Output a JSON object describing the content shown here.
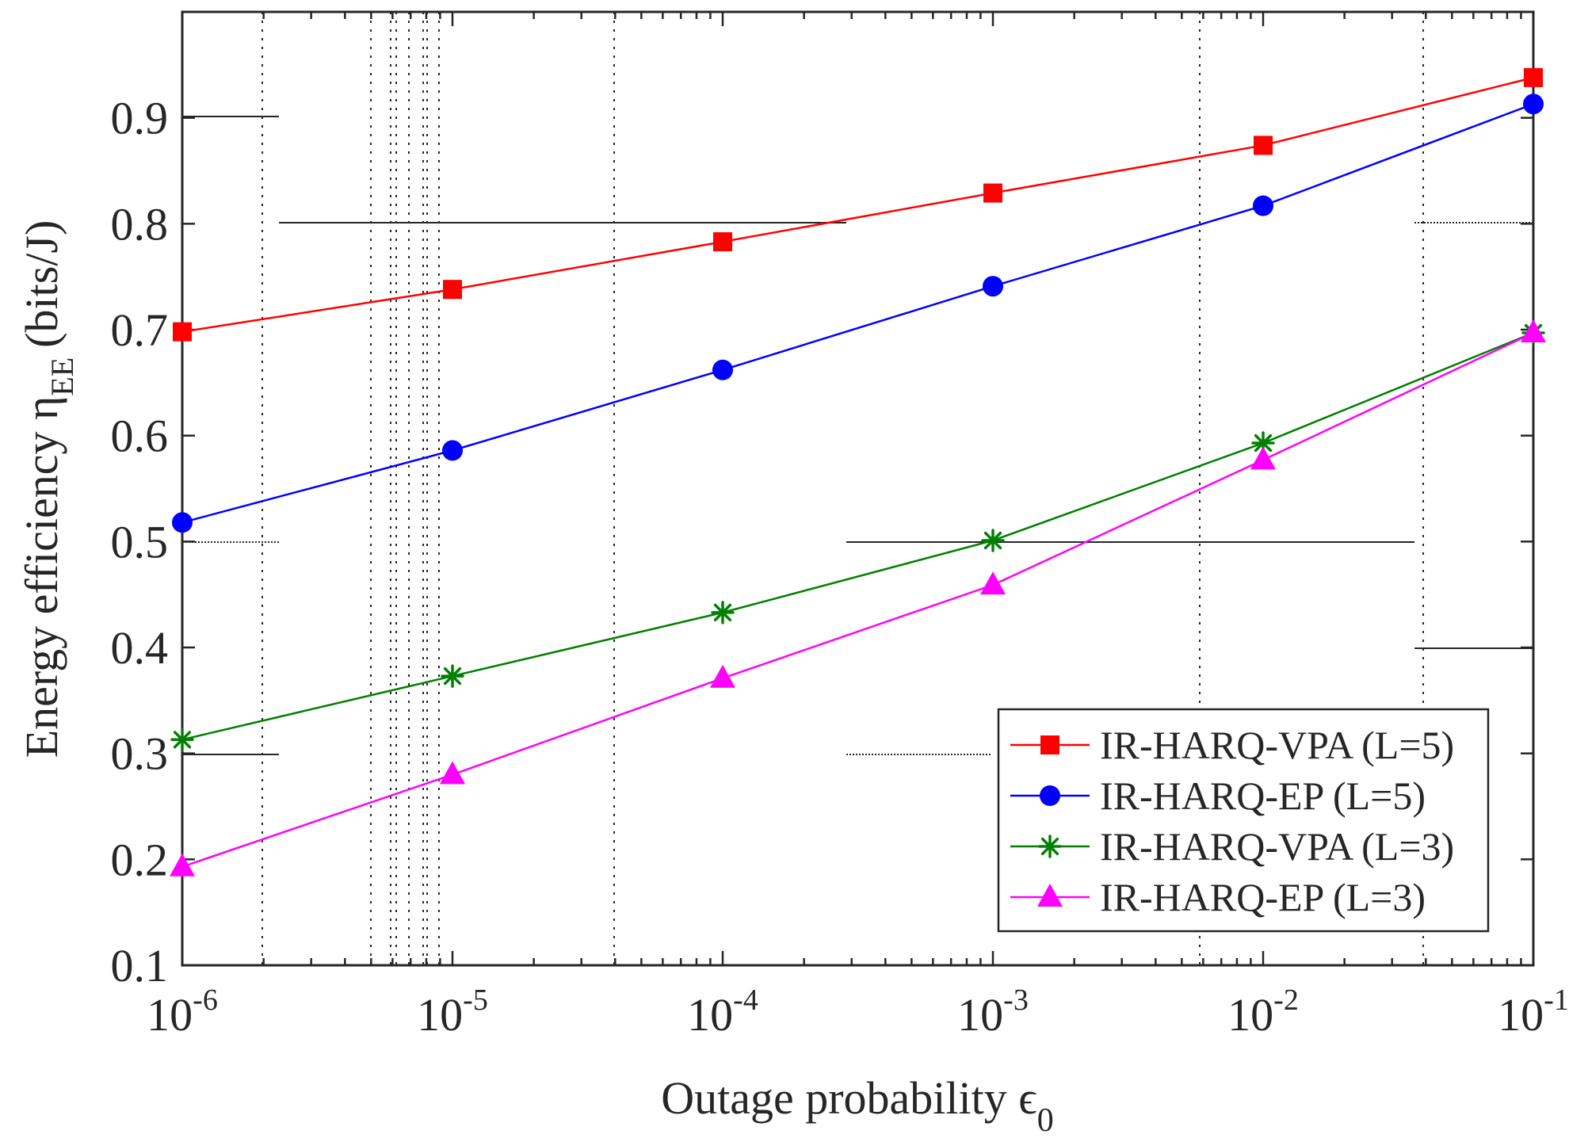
{
  "chart_data": {
    "type": "line",
    "xscale": "log",
    "xlim": [
      1e-06,
      0.1
    ],
    "ylim": [
      0.1,
      1.0
    ],
    "xlabel": "Outage probability ϵ",
    "xlabel_sub": "0",
    "ylabel": "Energy efficiency η",
    "ylabel_sub": "EE",
    "ylabel_unit": "(bits/J)",
    "x_ticks": [
      {
        "value": 1e-06,
        "base": "10",
        "exp": "-6"
      },
      {
        "value": 1e-05,
        "base": "10",
        "exp": "-5"
      },
      {
        "value": 0.0001,
        "base": "10",
        "exp": "-4"
      },
      {
        "value": 0.001,
        "base": "10",
        "exp": "-3"
      },
      {
        "value": 0.01,
        "base": "10",
        "exp": "-2"
      },
      {
        "value": 0.1,
        "base": "10",
        "exp": "-1"
      }
    ],
    "y_ticks": [
      {
        "value": 0.1,
        "label": "0.1"
      },
      {
        "value": 0.2,
        "label": "0.2"
      },
      {
        "value": 0.3,
        "label": "0.3"
      },
      {
        "value": 0.4,
        "label": "0.4"
      },
      {
        "value": 0.5,
        "label": "0.5"
      },
      {
        "value": 0.6,
        "label": "0.6"
      },
      {
        "value": 0.7,
        "label": "0.7"
      },
      {
        "value": 0.8,
        "label": "0.8"
      },
      {
        "value": 0.9,
        "label": "0.9"
      }
    ],
    "x": [
      1e-06,
      1e-05,
      0.0001,
      0.001,
      0.01,
      0.1
    ],
    "series": [
      {
        "name": "IR-HARQ-VPA (L=5)",
        "color": "#ff0000",
        "marker": "square",
        "values": [
          0.698,
          0.738,
          0.783,
          0.829,
          0.874,
          0.938
        ]
      },
      {
        "name": "IR-HARQ-EP (L=5)",
        "color": "#0000ff",
        "marker": "circle",
        "values": [
          0.518,
          0.586,
          0.662,
          0.741,
          0.817,
          0.913
        ]
      },
      {
        "name": "IR-HARQ-VPA (L=3)",
        "color": "#008000",
        "marker": "asterisk",
        "values": [
          0.313,
          0.373,
          0.433,
          0.501,
          0.593,
          0.697
        ]
      },
      {
        "name": "IR-HARQ-EP (L=3)",
        "color": "#ff00ff",
        "marker": "triangle",
        "values": [
          0.193,
          0.28,
          0.371,
          0.459,
          0.577,
          0.697
        ]
      }
    ],
    "grid": false,
    "legend_position": "lower-right"
  }
}
